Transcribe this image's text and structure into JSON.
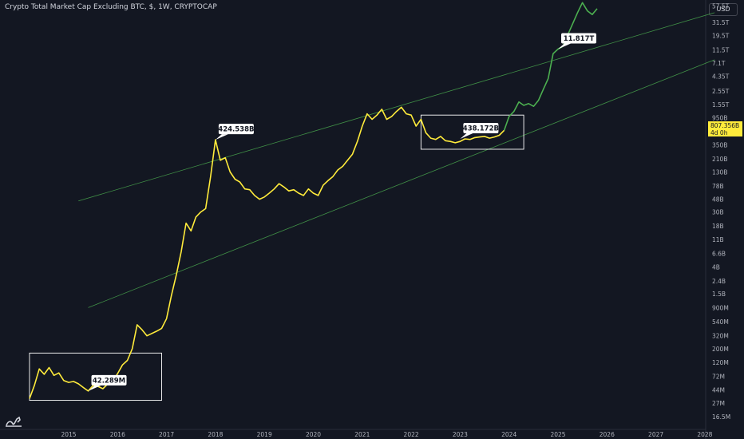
{
  "header": {
    "title": "Crypto Total Market Cap Excluding BTC, $, 1W, CRYPTOCAP",
    "currency": "USD"
  },
  "price_tag": {
    "value": "807.356B",
    "countdown": "4d 0h"
  },
  "colors": {
    "background": "#131722",
    "price_line": "#ffeb3b",
    "price_line_recent": "#4caf50",
    "channel": "#4caf50",
    "box": "#ffffff"
  },
  "chart_data": {
    "type": "line",
    "y_scale": "log",
    "ylim": [
      16500000,
      60000000000000
    ],
    "y_ticks": [
      "57.5T",
      "31.5T",
      "19.5T",
      "11.5T",
      "7.1T",
      "4.35T",
      "2.55T",
      "1.55T",
      "950B",
      "350B",
      "210B",
      "130B",
      "78B",
      "48B",
      "30B",
      "18B",
      "11B",
      "6.6B",
      "4B",
      "2.4B",
      "1.5B",
      "900M",
      "540M",
      "320M",
      "200M",
      "120M",
      "72M",
      "44M",
      "27M",
      "16.5M"
    ],
    "x_ticks": [
      "2015",
      "2016",
      "2017",
      "2018",
      "2019",
      "2020",
      "2021",
      "2022",
      "2023",
      "2024",
      "2025",
      "2026",
      "2027",
      "2028"
    ],
    "series": [
      {
        "x": [
          2014.2,
          2014.3,
          2014.4,
          2014.5,
          2014.6,
          2014.7,
          2014.8,
          2014.9,
          2015.0,
          2015.1,
          2015.2,
          2015.3,
          2015.4,
          2015.5,
          2015.6,
          2015.7,
          2015.8,
          2015.9,
          2016.0,
          2016.1,
          2016.2,
          2016.3,
          2016.4,
          2016.5,
          2016.6,
          2016.8,
          2016.9,
          2017.0,
          2017.1,
          2017.2,
          2017.3,
          2017.4,
          2017.5,
          2017.6,
          2017.7,
          2017.8,
          2017.9,
          2018.0,
          2018.1,
          2018.2,
          2018.3,
          2018.4,
          2018.5,
          2018.6,
          2018.7,
          2018.8,
          2018.9,
          2019.0,
          2019.1,
          2019.2,
          2019.3,
          2019.4,
          2019.5,
          2019.6,
          2019.7,
          2019.8,
          2019.9,
          2020.0,
          2020.1,
          2020.2,
          2020.3,
          2020.4,
          2020.5,
          2020.6,
          2020.7,
          2020.8,
          2020.9,
          2021.0,
          2021.1,
          2021.2,
          2021.3,
          2021.4,
          2021.5,
          2021.6,
          2021.7,
          2021.8,
          2021.9,
          2022.0,
          2022.1,
          2022.2,
          2022.3,
          2022.4,
          2022.5,
          2022.6,
          2022.7,
          2022.8,
          2022.9,
          2023.0,
          2023.1,
          2023.2,
          2023.3,
          2023.4,
          2023.5,
          2023.6,
          2023.7,
          2023.8,
          2023.9
        ],
        "values": [
          32000000,
          52000000,
          95000000,
          78000000,
          100000000,
          75000000,
          82000000,
          62000000,
          58000000,
          60000000,
          55000000,
          48000000,
          42289000,
          52000000,
          50000000,
          46000000,
          55000000,
          60000000,
          80000000,
          110000000,
          130000000,
          200000000,
          480000000,
          400000000,
          320000000,
          380000000,
          420000000,
          600000000,
          1400000000,
          3000000000,
          7000000000,
          20000000000,
          15000000000,
          25000000000,
          30000000000,
          34000000000,
          110000000000,
          424538000000,
          200000000000,
          220000000000,
          130000000000,
          100000000000,
          90000000000,
          70000000000,
          68000000000,
          55000000000,
          48000000000,
          52000000000,
          60000000000,
          70000000000,
          85000000000,
          75000000000,
          65000000000,
          68000000000,
          60000000000,
          55000000000,
          70000000000,
          60000000000,
          55000000000,
          80000000000,
          95000000000,
          110000000000,
          140000000000,
          160000000000,
          200000000000,
          250000000000,
          400000000000,
          700000000000,
          1100000000000,
          900000000000,
          1050000000000,
          1300000000000,
          900000000000,
          1000000000000,
          1200000000000,
          1400000000000,
          1100000000000,
          1050000000000,
          700000000000,
          900000000000,
          550000000000,
          450000000000,
          430000000000,
          480000000000,
          410000000000,
          400000000000,
          380000000000,
          400000000000,
          438172000000,
          430000000000,
          460000000000,
          470000000000,
          480000000000,
          450000000000,
          470000000000,
          500000000000,
          600000000000
        ]
      },
      {
        "x": [
          2023.9,
          2024.0,
          2024.1,
          2024.2,
          2024.3,
          2024.4,
          2024.5,
          2024.6,
          2024.7,
          2024.8,
          2024.9,
          2025.0,
          2025.1,
          2025.2,
          2025.3,
          2025.4,
          2025.5,
          2025.6,
          2025.7,
          2025.8
        ],
        "values": [
          600000000000,
          1000000000000,
          1200000000000,
          1700000000000,
          1500000000000,
          1600000000000,
          1450000000000,
          1800000000000,
          2700000000000,
          4000000000000,
          10000000000000,
          11817000000000,
          13000000000000,
          20000000000000,
          30000000000000,
          45000000000000,
          65000000000000,
          48000000000000,
          42000000000000,
          52000000000000
        ]
      }
    ],
    "annotations": [
      {
        "label": "42.289M",
        "x": 2015.4,
        "y": 42289000
      },
      {
        "label": "424.538B",
        "x": 2018.0,
        "y": 424538000000
      },
      {
        "label": "438.172B",
        "x": 2023.0,
        "y": 438172000000
      },
      {
        "label": "11.817T",
        "x": 2025.0,
        "y": 11817000000000
      }
    ],
    "channel_lines": [
      {
        "x": [
          2015.2,
          2028.2
        ],
        "y": [
          45000000000,
          45000000000000
        ]
      },
      {
        "x": [
          2015.4,
          2028.2
        ],
        "y": [
          900000000,
          8000000000000
        ]
      }
    ],
    "boxes": [
      {
        "x": [
          2014.2,
          2016.9
        ],
        "y": [
          30000000,
          170000000
        ]
      },
      {
        "x": [
          2022.2,
          2024.3
        ],
        "y": [
          300000000000,
          1050000000000
        ]
      }
    ]
  }
}
